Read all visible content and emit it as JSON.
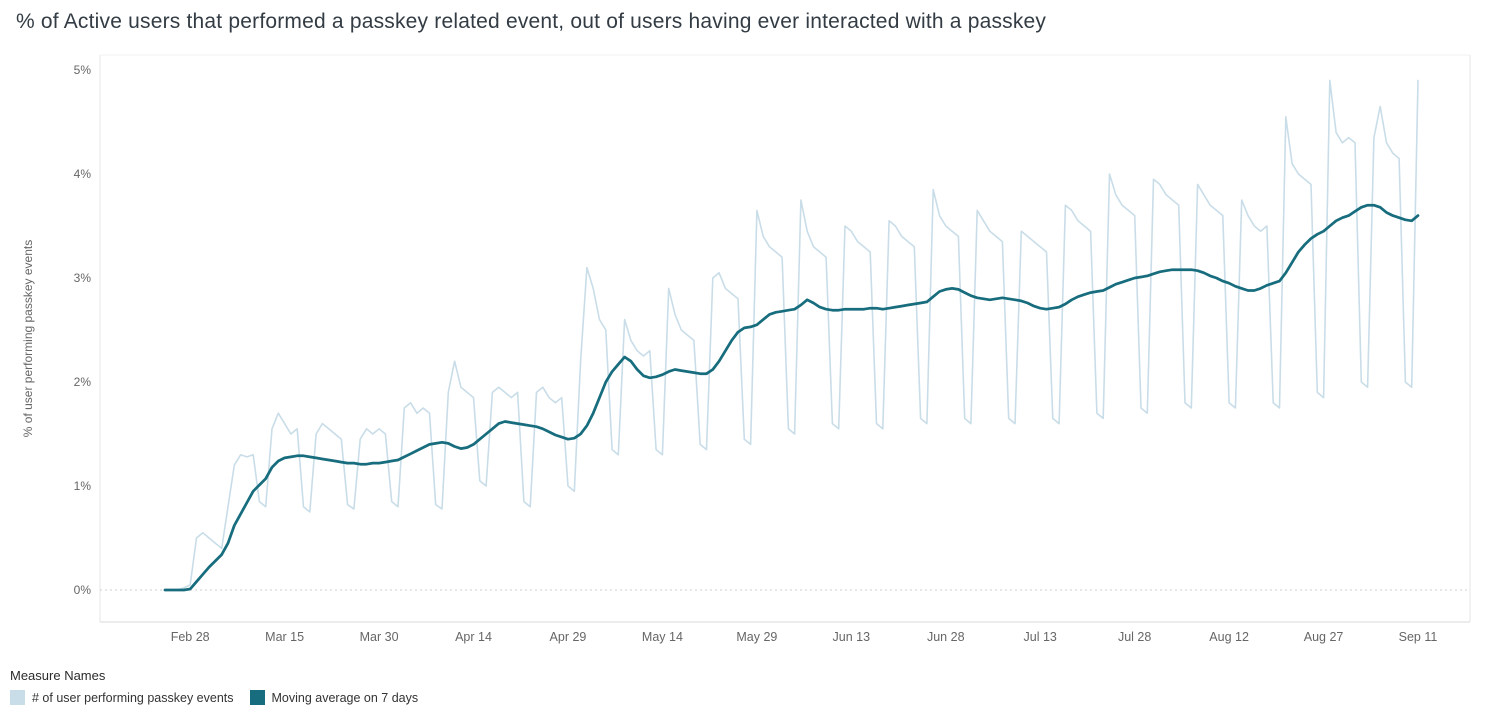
{
  "page": {
    "title": "% of Active users that performed a passkey related event, out of users having ever interacted with a passkey"
  },
  "legend": {
    "header": "Measure Names",
    "items": [
      {
        "label": "# of user performing passkey events",
        "color": "#c9dde8"
      },
      {
        "label": "Moving average on 7 days",
        "color": "#176d7d"
      }
    ]
  },
  "chart_data": {
    "type": "line",
    "title": "% of Active users that performed a passkey related event, out of users having ever interacted with a passkey",
    "xlabel": "",
    "ylabel": "% of user performing passkey events",
    "ylim": [
      0,
      5
    ],
    "y_ticks": [
      "0%",
      "1%",
      "2%",
      "3%",
      "4%",
      "5%"
    ],
    "y_tick_values": [
      0,
      1,
      2,
      3,
      4,
      5
    ],
    "grid": "dotted zero line only, light pane borders",
    "legend_position": "bottom-left",
    "n_points": 200,
    "x_start_label": "Feb 24",
    "x_end_label": "Sep 11",
    "x_ticks": [
      {
        "label": "Feb 28",
        "index": 4
      },
      {
        "label": "Mar 15",
        "index": 19
      },
      {
        "label": "Mar 30",
        "index": 34
      },
      {
        "label": "Apr 14",
        "index": 49
      },
      {
        "label": "Apr 29",
        "index": 64
      },
      {
        "label": "May 14",
        "index": 79
      },
      {
        "label": "May 29",
        "index": 94
      },
      {
        "label": "Jun 13",
        "index": 109
      },
      {
        "label": "Jun 28",
        "index": 124
      },
      {
        "label": "Jul 13",
        "index": 139
      },
      {
        "label": "Jul 28",
        "index": 154
      },
      {
        "label": "Aug 12",
        "index": 169
      },
      {
        "label": "Aug 27",
        "index": 184
      },
      {
        "label": "Sep 11",
        "index": 199
      }
    ],
    "series": [
      {
        "name": "# of user performing passkey events",
        "color": "#c9dde8",
        "stroke_width": 1.6,
        "values": [
          0.0,
          0.0,
          0.0,
          0.02,
          0.05,
          0.5,
          0.55,
          0.5,
          0.45,
          0.4,
          0.8,
          1.2,
          1.3,
          1.28,
          1.3,
          0.85,
          0.8,
          1.55,
          1.7,
          1.6,
          1.5,
          1.55,
          0.8,
          0.75,
          1.5,
          1.6,
          1.55,
          1.5,
          1.45,
          0.82,
          0.78,
          1.45,
          1.55,
          1.5,
          1.55,
          1.5,
          0.85,
          0.8,
          1.75,
          1.8,
          1.7,
          1.75,
          1.7,
          0.82,
          0.78,
          1.9,
          2.2,
          1.95,
          1.9,
          1.85,
          1.05,
          1.0,
          1.9,
          1.95,
          1.9,
          1.85,
          1.9,
          0.85,
          0.8,
          1.9,
          1.95,
          1.85,
          1.8,
          1.85,
          1.0,
          0.95,
          2.2,
          3.1,
          2.9,
          2.6,
          2.5,
          1.35,
          1.3,
          2.6,
          2.4,
          2.3,
          2.25,
          2.3,
          1.35,
          1.3,
          2.9,
          2.65,
          2.5,
          2.45,
          2.4,
          1.4,
          1.35,
          3.0,
          3.05,
          2.9,
          2.85,
          2.8,
          1.45,
          1.4,
          3.65,
          3.4,
          3.3,
          3.25,
          3.2,
          1.55,
          1.5,
          3.75,
          3.45,
          3.3,
          3.25,
          3.2,
          1.6,
          1.55,
          3.5,
          3.45,
          3.35,
          3.3,
          3.25,
          1.6,
          1.55,
          3.55,
          3.5,
          3.4,
          3.35,
          3.3,
          1.65,
          1.6,
          3.85,
          3.6,
          3.5,
          3.45,
          3.4,
          1.65,
          1.6,
          3.65,
          3.55,
          3.45,
          3.4,
          3.35,
          1.65,
          1.6,
          3.45,
          3.4,
          3.35,
          3.3,
          3.25,
          1.65,
          1.6,
          3.7,
          3.65,
          3.55,
          3.5,
          3.45,
          1.7,
          1.65,
          4.0,
          3.8,
          3.7,
          3.65,
          3.6,
          1.75,
          1.7,
          3.95,
          3.9,
          3.8,
          3.75,
          3.7,
          1.8,
          1.75,
          3.9,
          3.8,
          3.7,
          3.65,
          3.6,
          1.8,
          1.75,
          3.75,
          3.6,
          3.5,
          3.45,
          3.5,
          1.8,
          1.75,
          4.55,
          4.1,
          4.0,
          3.95,
          3.9,
          1.9,
          1.85,
          4.9,
          4.4,
          4.3,
          4.35,
          4.3,
          2.0,
          1.95,
          4.35,
          4.65,
          4.3,
          4.2,
          4.15,
          2.0,
          1.95,
          4.9
        ]
      },
      {
        "name": "Moving average on 7 days",
        "color": "#176d7d",
        "stroke_width": 2.75,
        "values": [
          0.0,
          0.0,
          0.0,
          0.0,
          0.01,
          0.08,
          0.15,
          0.22,
          0.28,
          0.34,
          0.45,
          0.62,
          0.73,
          0.84,
          0.95,
          1.01,
          1.07,
          1.18,
          1.24,
          1.27,
          1.28,
          1.29,
          1.29,
          1.28,
          1.27,
          1.26,
          1.25,
          1.24,
          1.23,
          1.22,
          1.22,
          1.21,
          1.21,
          1.22,
          1.22,
          1.23,
          1.24,
          1.25,
          1.28,
          1.31,
          1.34,
          1.37,
          1.4,
          1.41,
          1.42,
          1.41,
          1.38,
          1.36,
          1.37,
          1.4,
          1.45,
          1.5,
          1.55,
          1.6,
          1.62,
          1.61,
          1.6,
          1.59,
          1.58,
          1.57,
          1.55,
          1.52,
          1.49,
          1.47,
          1.45,
          1.46,
          1.5,
          1.58,
          1.7,
          1.85,
          2.0,
          2.1,
          2.17,
          2.24,
          2.2,
          2.12,
          2.06,
          2.04,
          2.05,
          2.07,
          2.1,
          2.12,
          2.11,
          2.1,
          2.09,
          2.08,
          2.08,
          2.12,
          2.2,
          2.3,
          2.4,
          2.48,
          2.52,
          2.53,
          2.55,
          2.6,
          2.65,
          2.67,
          2.68,
          2.69,
          2.7,
          2.74,
          2.79,
          2.76,
          2.72,
          2.7,
          2.69,
          2.69,
          2.7,
          2.7,
          2.7,
          2.7,
          2.71,
          2.71,
          2.7,
          2.71,
          2.72,
          2.73,
          2.74,
          2.75,
          2.76,
          2.77,
          2.82,
          2.87,
          2.89,
          2.9,
          2.89,
          2.86,
          2.83,
          2.81,
          2.8,
          2.79,
          2.8,
          2.81,
          2.8,
          2.79,
          2.78,
          2.76,
          2.73,
          2.71,
          2.7,
          2.71,
          2.72,
          2.75,
          2.79,
          2.82,
          2.84,
          2.86,
          2.87,
          2.88,
          2.91,
          2.94,
          2.96,
          2.98,
          3.0,
          3.01,
          3.02,
          3.04,
          3.06,
          3.07,
          3.08,
          3.08,
          3.08,
          3.08,
          3.07,
          3.05,
          3.02,
          3.0,
          2.97,
          2.95,
          2.92,
          2.9,
          2.88,
          2.88,
          2.9,
          2.93,
          2.95,
          2.97,
          3.05,
          3.15,
          3.25,
          3.32,
          3.38,
          3.42,
          3.45,
          3.5,
          3.55,
          3.58,
          3.6,
          3.64,
          3.68,
          3.7,
          3.7,
          3.68,
          3.63,
          3.6,
          3.58,
          3.56,
          3.55,
          3.6
        ]
      }
    ]
  }
}
